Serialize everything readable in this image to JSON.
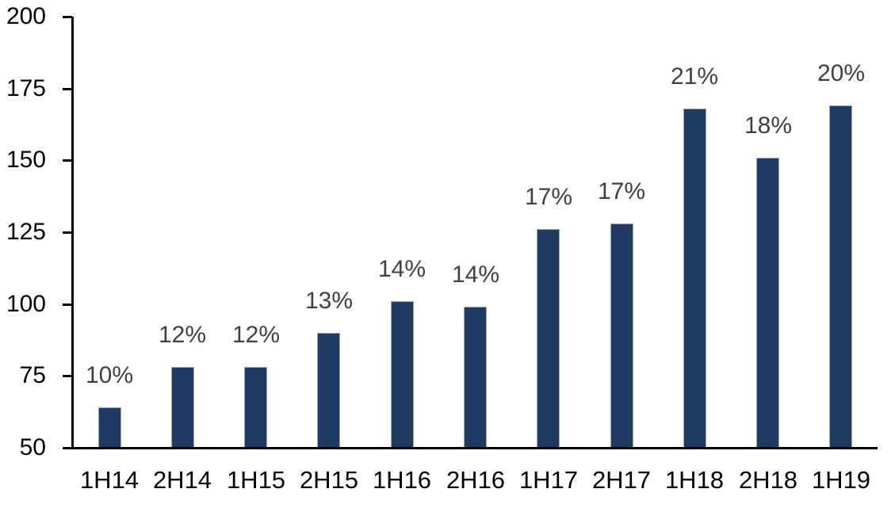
{
  "chart_data": {
    "type": "bar",
    "title": "",
    "xlabel": "",
    "ylabel": "",
    "categories": [
      "1H14",
      "2H14",
      "1H15",
      "2H15",
      "1H16",
      "2H16",
      "1H17",
      "2H17",
      "1H18",
      "2H18",
      "1H19"
    ],
    "values": [
      64,
      78,
      78,
      90,
      101,
      99,
      126,
      128,
      168,
      151,
      169
    ],
    "data_labels": [
      "10%",
      "12%",
      "12%",
      "13%",
      "14%",
      "14%",
      "17%",
      "17%",
      "21%",
      "18%",
      "20%"
    ],
    "ylim": [
      50,
      200
    ],
    "yticks": [
      50,
      75,
      100,
      125,
      150,
      175,
      200
    ],
    "grid": false,
    "legend": false,
    "colors": {
      "bar_fill": "#1f3a63",
      "bar_border": "#9aa8bd",
      "data_label": "#404040",
      "axis_text": "#000000",
      "axis_line": "#000000",
      "background": "#ffffff"
    }
  }
}
